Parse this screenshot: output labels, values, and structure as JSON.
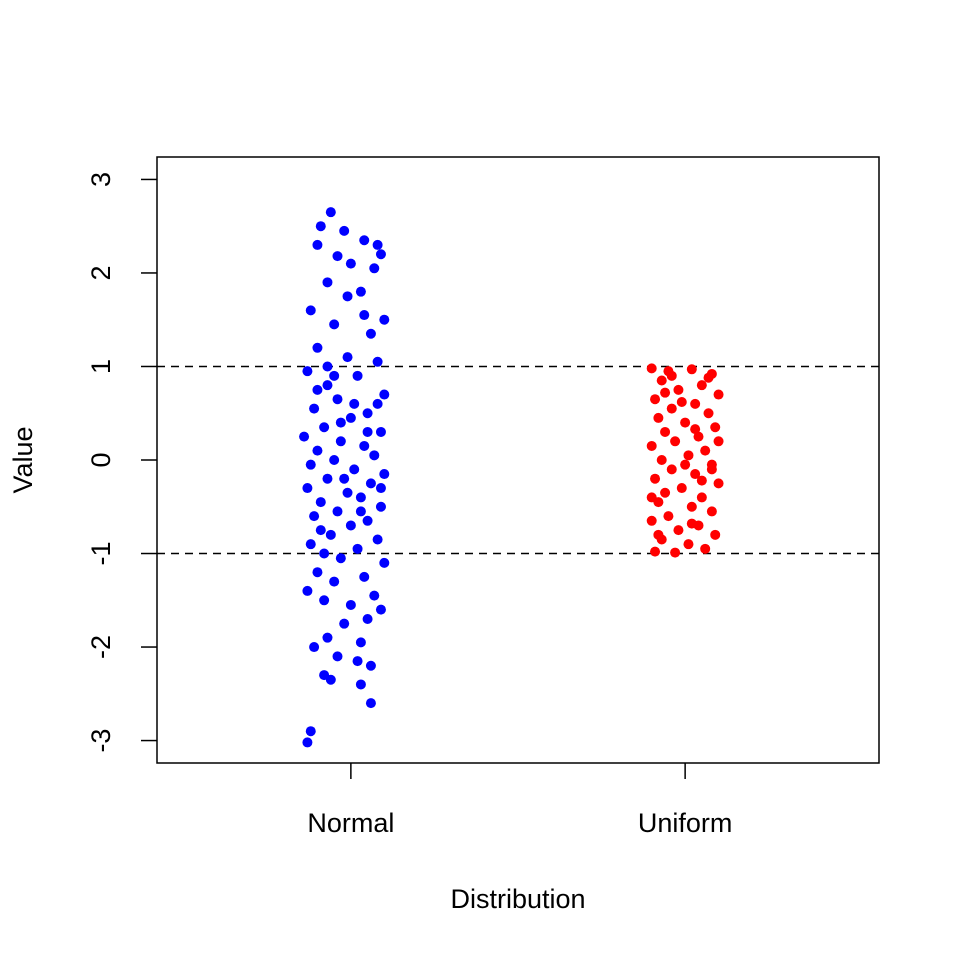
{
  "chart_data": {
    "type": "scatter",
    "x_label": "Distribution",
    "y_label": "Value",
    "xlim": [
      0.42,
      2.58
    ],
    "xticks": [
      {
        "value": 1,
        "label": "Normal"
      },
      {
        "value": 2,
        "label": "Uniform"
      }
    ],
    "ylim": [
      -3.24,
      3.24
    ],
    "yticks": [
      -3,
      -2,
      -1,
      0,
      1,
      2,
      3
    ],
    "reference_lines": [
      1,
      -1
    ],
    "series": [
      {
        "color": "#0000ff",
        "x": [
          0.94,
          0.91,
          0.98,
          1.04,
          1.08,
          0.9,
          1.09,
          0.96,
          1.07,
          1.0,
          0.93,
          1.03,
          0.88,
          1.1,
          0.95,
          1.06,
          0.9,
          0.99,
          1.08,
          0.87,
          1.02,
          0.93,
          1.1,
          0.96,
          0.89,
          1.05,
          1.0,
          0.92,
          1.09,
          0.86,
          0.97,
          1.04,
          0.9,
          1.07,
          0.95,
          0.88,
          1.01,
          1.1,
          0.93,
          1.06,
          0.87,
          0.99,
          1.03,
          0.91,
          1.09,
          0.96,
          0.89,
          1.05,
          1.0,
          0.94,
          1.08,
          0.88,
          1.02,
          0.97,
          1.1,
          0.9,
          1.04,
          0.95,
          0.87,
          1.07,
          1.0,
          0.92,
          1.09,
          1.05,
          0.98,
          0.93,
          1.03,
          0.89,
          0.96,
          1.02,
          1.06,
          0.92,
          1.03,
          0.94,
          1.06,
          0.88,
          0.87,
          0.95,
          1.01,
          0.91,
          1.05,
          0.98,
          1.08,
          0.9,
          1.03,
          0.97,
          1.09,
          0.93,
          1.04,
          0.99,
          0.92
        ],
        "values": [
          2.65,
          2.5,
          2.45,
          2.35,
          2.3,
          2.3,
          2.2,
          2.18,
          2.05,
          2.1,
          1.9,
          1.8,
          1.6,
          1.5,
          1.45,
          1.35,
          1.2,
          1.1,
          1.05,
          0.95,
          0.9,
          0.8,
          0.7,
          0.65,
          0.55,
          0.5,
          0.45,
          0.35,
          0.3,
          0.25,
          0.2,
          0.15,
          0.1,
          0.05,
          0.0,
          -0.05,
          -0.1,
          -0.15,
          -0.2,
          -0.25,
          -0.3,
          -0.35,
          -0.4,
          -0.45,
          -0.5,
          -0.55,
          -0.6,
          -0.65,
          -0.7,
          -0.8,
          -0.85,
          -0.9,
          -0.95,
          -1.05,
          -1.1,
          -1.2,
          -1.25,
          -1.3,
          -1.4,
          -1.45,
          -1.55,
          -1.5,
          -1.6,
          -1.7,
          -1.75,
          -1.9,
          -1.95,
          -2.0,
          -2.1,
          -2.15,
          -2.2,
          -2.3,
          -2.4,
          -2.35,
          -2.6,
          -2.9,
          -3.02,
          0.9,
          0.6,
          -0.75,
          0.3,
          -0.2,
          0.6,
          0.75,
          -0.55,
          0.4,
          -0.3,
          1.0,
          1.55,
          1.75,
          -1.0
        ]
      },
      {
        "color": "#ff0000",
        "x": [
          1.9,
          1.95,
          2.02,
          2.08,
          1.93,
          2.05,
          1.98,
          2.1,
          1.91,
          2.03,
          1.96,
          2.07,
          1.92,
          2.0,
          2.09,
          1.94,
          2.04,
          1.97,
          1.9,
          2.06,
          2.01,
          1.93,
          2.08,
          1.96,
          2.03,
          1.91,
          2.1,
          1.99,
          1.94,
          2.05,
          1.92,
          2.02,
          2.08,
          1.95,
          1.9,
          2.04,
          1.98,
          2.09,
          1.93,
          2.01,
          2.06,
          1.91,
          1.97,
          2.07,
          1.99,
          2.05,
          1.94,
          2.02,
          1.9,
          2.1,
          1.96,
          2.03,
          2.08,
          1.92,
          2.0
        ],
        "values": [
          0.98,
          0.95,
          0.97,
          0.92,
          0.85,
          0.8,
          0.75,
          0.7,
          0.65,
          0.6,
          0.55,
          0.5,
          0.45,
          0.4,
          0.35,
          0.3,
          0.25,
          0.2,
          0.15,
          0.1,
          0.05,
          0.0,
          -0.05,
          -0.1,
          -0.15,
          -0.2,
          -0.25,
          -0.3,
          -0.35,
          -0.4,
          -0.45,
          -0.5,
          -0.55,
          -0.6,
          -0.65,
          -0.7,
          -0.75,
          -0.8,
          -0.85,
          -0.9,
          -0.95,
          -0.98,
          -0.99,
          0.88,
          0.62,
          -0.22,
          0.72,
          -0.68,
          -0.4,
          0.2,
          0.9,
          0.33,
          -0.1,
          -0.8,
          -0.05
        ]
      }
    ]
  }
}
